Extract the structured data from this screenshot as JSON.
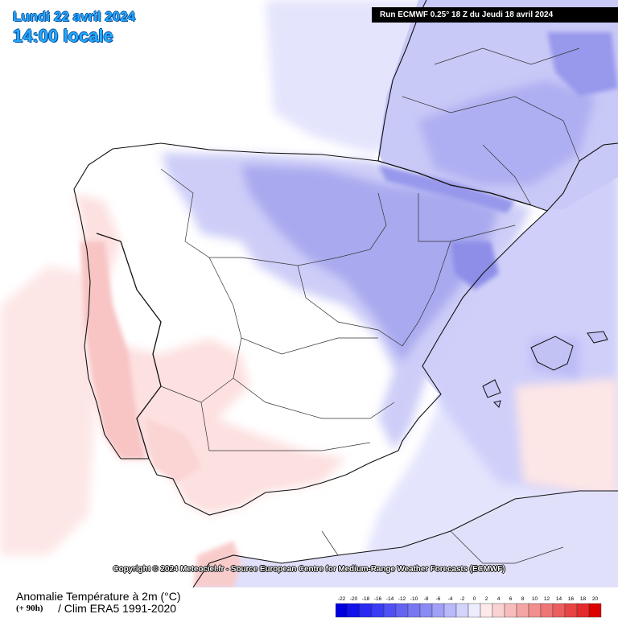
{
  "header": {
    "date": "Lundi 22 avril 2024",
    "time": "14:00 locale",
    "run": "Run ECMWF 0.25° 18 Z du Jeudi 18 avril 2024"
  },
  "copyright": "Copyright © 2024 Meteociel.fr - Source European Centre for Medium-Range Weather Forecasts (ECMWF)",
  "footer": {
    "title": "Anomalie Température à 2m (°C)",
    "lead": "(+ 90h)",
    "subtitle": "/ Clim ERA5 1991-2020"
  },
  "legend": {
    "ticks": [
      "-22",
      "-20",
      "-18",
      "-16",
      "-14",
      "-12",
      "-10",
      "-8",
      "-6",
      "-4",
      "-2",
      "0",
      "2",
      "4",
      "6",
      "8",
      "10",
      "12",
      "14",
      "16",
      "18",
      "20"
    ],
    "colors": [
      "#0000dd",
      "#1111ee",
      "#2828f2",
      "#3b3bf5",
      "#5050f5",
      "#6464f3",
      "#7777f2",
      "#8a8af5",
      "#a0a0f8",
      "#b8b8fa",
      "#d3d3fc",
      "#ececfe",
      "#fde9e9",
      "#fbd2d2",
      "#f8bcbc",
      "#f5a5a5",
      "#f28e8e",
      "#ef7676",
      "#ec5e5e",
      "#e84444",
      "#e42a2a",
      "#dd0000"
    ]
  },
  "map": {
    "region": "Iberian Peninsula",
    "colors": {
      "sea_light": "#e2e2fd",
      "sea_mid": "#cfcffa",
      "land_neutral": "#ffffff",
      "cool_light": "#c6c6f6",
      "cool_mid": "#a9a9ef",
      "cool_strong": "#8c8ce8",
      "warm_light": "#fde2e2",
      "warm_mid": "#f8c6c6",
      "border": "#111111"
    }
  }
}
